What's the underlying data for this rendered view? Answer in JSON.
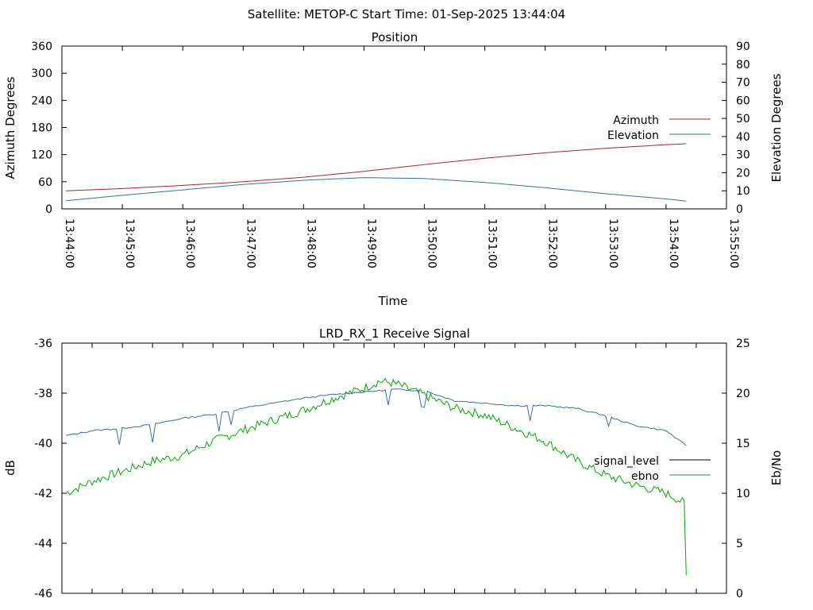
{
  "header": {
    "title": "Satellite: METOP-C    Start Time: 01-Sep-2025 13:44:04"
  },
  "chart_data": [
    {
      "type": "line",
      "title": "Position",
      "xlabel": "Time",
      "ylabel": "Azimuth Degrees",
      "y2label": "Elevation Degrees",
      "xlim": [
        "13:44:00",
        "13:55:00"
      ],
      "ylim": [
        0,
        360
      ],
      "y2lim": [
        0,
        90
      ],
      "x_ticks": [
        "13:44:00",
        "13:45:00",
        "13:46:00",
        "13:47:00",
        "13:48:00",
        "13:49:00",
        "13:50:00",
        "13:51:00",
        "13:52:00",
        "13:53:00",
        "13:54:00",
        "13:55:00"
      ],
      "y_ticks": [
        "0",
        "60",
        "120",
        "180",
        "240",
        "300",
        "360"
      ],
      "y2_ticks": [
        "0",
        "10",
        "20",
        "30",
        "40",
        "50",
        "60",
        "70",
        "80",
        "90"
      ],
      "grid": false,
      "legend_position": "right",
      "x": [
        "13:44:04",
        "13:45:00",
        "13:46:00",
        "13:47:00",
        "13:48:00",
        "13:49:00",
        "13:50:00",
        "13:51:00",
        "13:52:00",
        "13:53:00",
        "13:54:00",
        "13:54:20"
      ],
      "series": [
        {
          "name": "Azimuth",
          "axis": "y",
          "color": "#a52a2a",
          "values": [
            40,
            45,
            52,
            60,
            70,
            83,
            98,
            112,
            124,
            134,
            142,
            144
          ]
        },
        {
          "name": "Elevation",
          "axis": "y2",
          "color": "#3b6ea5",
          "values": [
            4.5,
            7.5,
            10.5,
            13.5,
            15.8,
            17.3,
            16.8,
            14.6,
            11.7,
            8.4,
            5.5,
            4.3
          ]
        }
      ]
    },
    {
      "type": "line",
      "title": "LRD_RX_1 Receive Signal",
      "ylabel": "dB",
      "y2label": "Eb/No",
      "xlim": [
        "13:44:00",
        "13:55:00"
      ],
      "ylim": [
        -46,
        -36
      ],
      "y2lim": [
        0,
        25
      ],
      "y_ticks": [
        "-46",
        "-44",
        "-42",
        "-40",
        "-38",
        "-36"
      ],
      "y2_ticks": [
        "0",
        "5",
        "10",
        "15",
        "20",
        "25"
      ],
      "grid": false,
      "legend_position": "right",
      "legend": [
        {
          "name": "signal_level",
          "color": "#000000"
        },
        {
          "name": "ebno",
          "color": "#3b6ea5"
        }
      ],
      "signal_trace": {
        "color": "#00aa00",
        "axis": "y2",
        "x": [
          "13:44:04",
          "13:44:30",
          "13:45:00",
          "13:45:30",
          "13:46:00",
          "13:46:30",
          "13:47:00",
          "13:47:30",
          "13:48:00",
          "13:48:30",
          "13:49:00",
          "13:49:15",
          "13:49:30",
          "13:50:00",
          "13:50:30",
          "13:51:00",
          "13:51:30",
          "13:52:00",
          "13:52:30",
          "13:53:00",
          "13:53:30",
          "13:54:00",
          "13:54:10",
          "13:54:18",
          "13:54:20"
        ],
        "values": [
          10.0,
          11.2,
          12.2,
          13.2,
          13.8,
          15.2,
          16.3,
          17.3,
          18.3,
          19.5,
          20.5,
          21.2,
          21.0,
          19.8,
          18.5,
          17.8,
          16.5,
          15.2,
          13.3,
          11.8,
          10.8,
          10.0,
          9.5,
          9.0,
          1.8
        ]
      },
      "series": [
        {
          "name": "ebno",
          "axis": "y",
          "color": "#3b6ea5",
          "x": [
            "13:44:04",
            "13:44:30",
            "13:45:00",
            "13:45:30",
            "13:46:00",
            "13:46:30",
            "13:47:00",
            "13:47:30",
            "13:48:00",
            "13:48:30",
            "13:49:00",
            "13:49:30",
            "13:50:00",
            "13:50:30",
            "13:51:00",
            "13:51:30",
            "13:52:00",
            "13:52:30",
            "13:53:00",
            "13:53:30",
            "13:54:00",
            "13:54:20"
          ],
          "values": [
            -39.7,
            -39.5,
            -39.4,
            -39.25,
            -39.0,
            -38.85,
            -38.6,
            -38.4,
            -38.2,
            -38.05,
            -37.95,
            -37.85,
            -37.9,
            -38.3,
            -38.4,
            -38.5,
            -38.5,
            -38.6,
            -38.9,
            -39.3,
            -39.5,
            -40.1
          ]
        }
      ]
    }
  ]
}
